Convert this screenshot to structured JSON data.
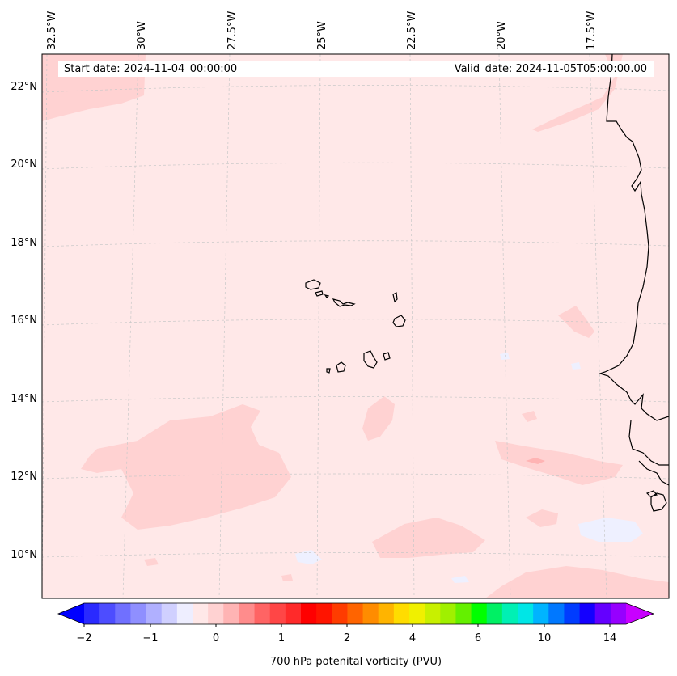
{
  "map": {
    "start_date": "Start date: 2024-11-04_00:00:00",
    "valid_date": "Valid_date: 2024-11-05T05:00:00.00",
    "lon_labels": [
      "32.5°W",
      "30°W",
      "27.5°W",
      "25°W",
      "22.5°W",
      "20°W",
      "17.5°W"
    ],
    "lat_labels": [
      "22°N",
      "20°N",
      "18°N",
      "16°N",
      "14°N",
      "12°N",
      "10°N"
    ],
    "colors": {
      "background_fill": "#ffe8e8",
      "light_patch": "#ffd2d2",
      "mid_patch": "#ffb4b4",
      "negative_patch": "#eef0ff",
      "coastline": "#000000",
      "grid": "#c8c8c8"
    }
  },
  "colorbar": {
    "label": "700 hPa potenital vorticity (PVU)",
    "ticks": [
      "−2",
      "−1",
      "0",
      "1",
      "2",
      "4",
      "6",
      "10",
      "14"
    ],
    "colors": [
      "#0000ff",
      "#2a2aff",
      "#4d4dff",
      "#7070ff",
      "#8f8fff",
      "#b0b0ff",
      "#d0d0ff",
      "#eeeeff",
      "#ffe8e8",
      "#ffd2d2",
      "#ffb4b4",
      "#ff8c8c",
      "#ff6464",
      "#ff4646",
      "#ff2a2a",
      "#ff0000",
      "#ff1400",
      "#ff3c00",
      "#ff6400",
      "#ff8c00",
      "#ffb400",
      "#ffdc00",
      "#f0f000",
      "#c8f000",
      "#a0f000",
      "#64f000",
      "#00ff00",
      "#00f064",
      "#00f0b4",
      "#00e6e6",
      "#00b4ff",
      "#0078ff",
      "#003cff",
      "#1400ff",
      "#6400ff",
      "#9600ff",
      "#c800ff"
    ]
  }
}
